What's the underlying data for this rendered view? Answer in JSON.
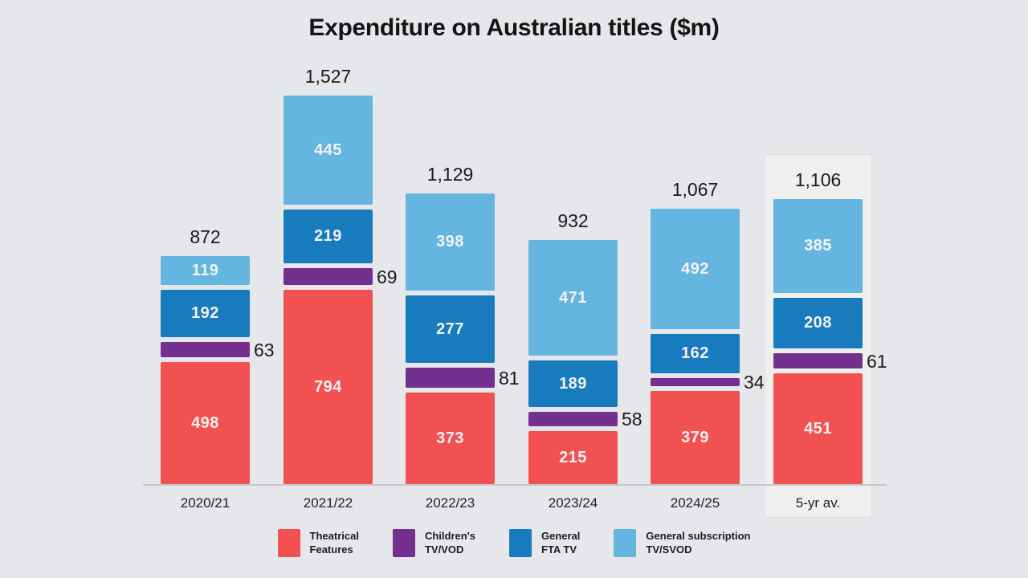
{
  "title": "Expenditure on Australian titles ($m)",
  "colors": {
    "background": "#E6E7EA",
    "theatrical_features": "#F15150",
    "childrens_tv_vod": "#74308F",
    "general_fta_tv": "#177BBE",
    "general_subscription_tv_svod": "#64B5E0",
    "highlight_panel": "#EFEFED",
    "axis_line": "#C5C5CA",
    "text": "#1A1A1A"
  },
  "chart_data": {
    "type": "bar",
    "stacked": true,
    "title": "Expenditure on Australian titles ($m)",
    "categories": [
      "2020/21",
      "2021/22",
      "2022/23",
      "2023/24",
      "2024/25",
      "5-yr av."
    ],
    "series": [
      {
        "name": "Theatrical Features",
        "color": "#F15150",
        "label_position": "inside",
        "values": [
          498,
          794,
          373,
          215,
          379,
          451
        ]
      },
      {
        "name": "Children's TV/VOD",
        "color": "#74308F",
        "label_position": "right",
        "values": [
          63,
          69,
          81,
          58,
          34,
          61
        ]
      },
      {
        "name": "General FTA TV",
        "color": "#177BBE",
        "label_position": "inside",
        "values": [
          192,
          219,
          277,
          189,
          162,
          208
        ]
      },
      {
        "name": "General subscription TV/SVOD",
        "color": "#64B5E0",
        "label_position": "inside",
        "values": [
          119,
          445,
          398,
          471,
          492,
          385
        ]
      }
    ],
    "total_labels": [
      "872",
      "1,527",
      "1,129",
      "932",
      "1,067",
      "1,106"
    ],
    "highlighted_category": "5-yr av.",
    "ylim": [
      0,
      1600
    ],
    "grid": false,
    "legend_position": "bottom"
  },
  "legend": {
    "items": [
      {
        "label": "Theatrical\nFeatures",
        "color": "#F15150"
      },
      {
        "label": "Children's\nTV/VOD",
        "color": "#74308F"
      },
      {
        "label": "General\nFTA TV",
        "color": "#177BBE"
      },
      {
        "label": "General subscription\nTV/SVOD",
        "color": "#64B5E0"
      }
    ]
  }
}
